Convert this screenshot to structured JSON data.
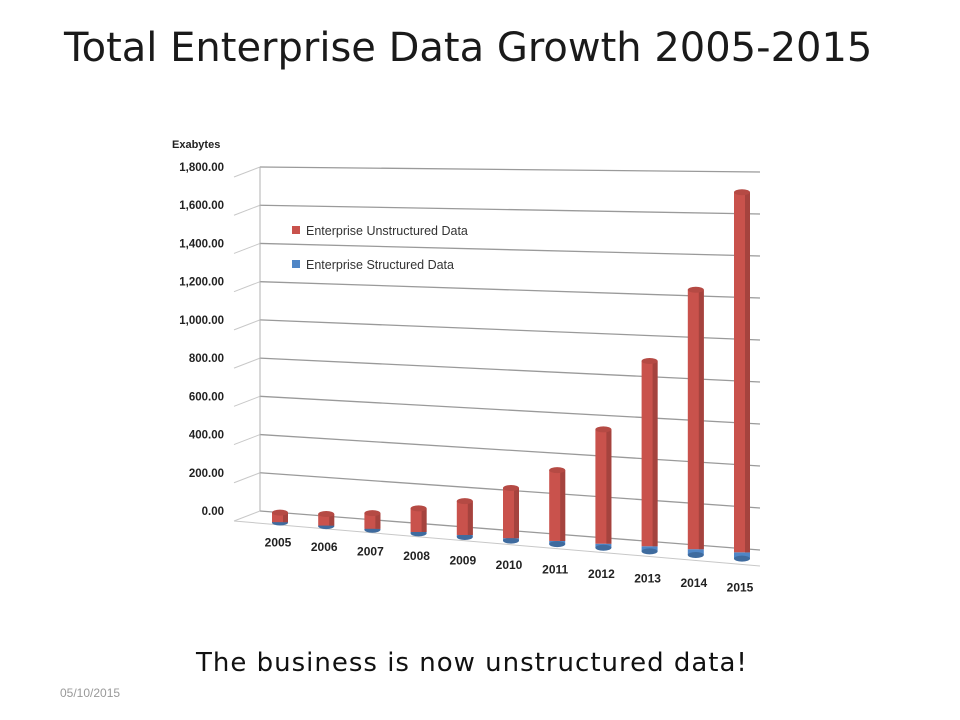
{
  "slide": {
    "title": "Total Enterprise Data Growth 2005-2015",
    "caption": "The business is now unstructured data!",
    "footer_date": "05/10/2015"
  },
  "colors": {
    "unstructured": "#c9524c",
    "structured": "#4f86c6",
    "grid": "#9a9a9a"
  },
  "chart_data": {
    "type": "bar",
    "ylabel": "Exabytes",
    "ylim": [
      0,
      1800
    ],
    "yticks": [
      "0.00",
      "200.00",
      "400.00",
      "600.00",
      "800.00",
      "1,000.00",
      "1,200.00",
      "1,400.00",
      "1,600.00",
      "1,800.00"
    ],
    "categories": [
      "2005",
      "2006",
      "2007",
      "2008",
      "2009",
      "2010",
      "2011",
      "2012",
      "2013",
      "2014",
      "2015"
    ],
    "grid": true,
    "legend_position": "top-left",
    "series": [
      {
        "name": "Enterprise Unstructured Data",
        "values": [
          50,
          60,
          80,
          120,
          170,
          250,
          350,
          560,
          900,
          1250,
          1720
        ]
      },
      {
        "name": "Enterprise Structured Data",
        "values": [
          2,
          3,
          5,
          7,
          10,
          12,
          16,
          20,
          25,
          28,
          30
        ]
      }
    ]
  }
}
